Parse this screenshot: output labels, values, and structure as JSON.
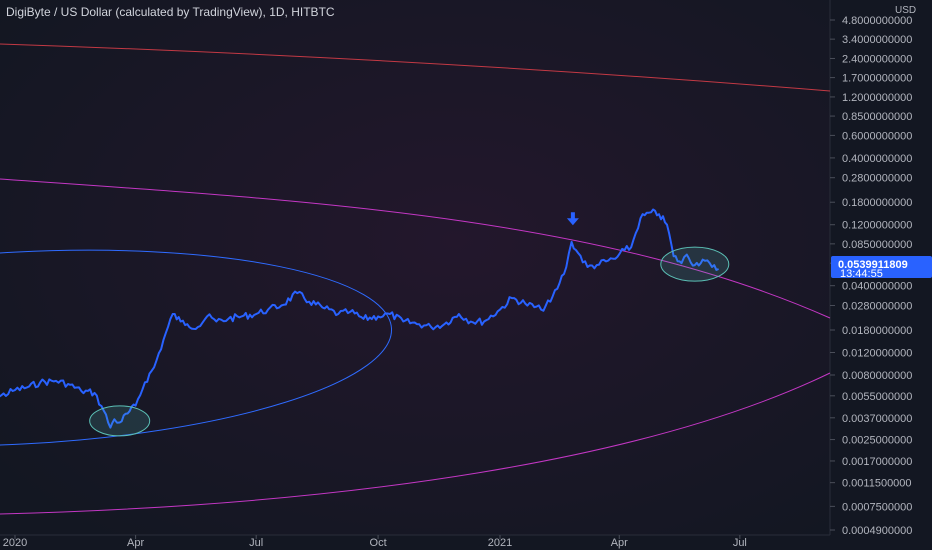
{
  "header": {
    "title": "DigiByte / US Dollar (calculated by TradingView), 1D, HITBTC"
  },
  "colors": {
    "background": "#131722",
    "price_line": "#2962ff",
    "ellipse_red": "#e0404a",
    "ellipse_magenta": "#d63bd6",
    "ellipse_blue": "#2f6bff",
    "circle_teal": "#5bbfb5",
    "price_tag": "#2962ff",
    "axis_text": "#b2b5be"
  },
  "chart_data": {
    "type": "line",
    "title": "DigiByte / US Dollar (calculated by TradingView), 1D, HITBTC",
    "unit_label": "USD",
    "y_scale": "log",
    "ylim": [
      0.00045,
      5.0
    ],
    "y_tick_labels": [
      "4.8000000000",
      "3.4000000000",
      "2.4000000000",
      "1.7000000000",
      "1.2000000000",
      "0.8500000000",
      "0.6000000000",
      "0.4000000000",
      "0.2800000000",
      "0.1800000000",
      "0.1200000000",
      "0.0850000000",
      "0.0600000000",
      "0.0400000000",
      "0.0280000000",
      "0.0180000000",
      "0.0120000000",
      "0.0080000000",
      "0.0055000000",
      "0.0037000000",
      "0.0025000000",
      "0.0017000000",
      "0.0011500000",
      "0.0007500000",
      "0.0004900000"
    ],
    "y_tick_values": [
      4.8,
      3.4,
      2.4,
      1.7,
      1.2,
      0.85,
      0.6,
      0.4,
      0.28,
      0.18,
      0.12,
      0.085,
      0.06,
      0.04,
      0.028,
      0.018,
      0.012,
      0.008,
      0.0055,
      0.0037,
      0.0025,
      0.0017,
      0.00115,
      0.00075,
      0.00049
    ],
    "x_tick_labels": [
      "2020",
      "Apr",
      "Jul",
      "Oct",
      "2021",
      "Apr",
      "Jul"
    ],
    "x_tick_dates": [
      "2020-01-01",
      "2020-04-01",
      "2020-07-01",
      "2020-10-01",
      "2021-01-01",
      "2021-04-01",
      "2021-07-01"
    ],
    "last_price_label": "0.0539911809",
    "countdown_label": "13:44:55",
    "series": [
      {
        "dates": [
          "2019-12-01",
          "2019-12-10",
          "2019-12-20",
          "2020-01-01",
          "2020-01-10",
          "2020-01-20",
          "2020-02-01",
          "2020-02-10",
          "2020-02-20",
          "2020-03-01",
          "2020-03-08",
          "2020-03-13",
          "2020-03-16",
          "2020-03-20",
          "2020-03-26",
          "2020-04-01",
          "2020-04-08",
          "2020-04-15",
          "2020-04-22",
          "2020-04-29",
          "2020-05-05",
          "2020-05-10",
          "2020-05-18",
          "2020-05-25",
          "2020-06-01",
          "2020-06-10",
          "2020-06-20",
          "2020-07-01",
          "2020-07-10",
          "2020-07-20",
          "2020-08-01",
          "2020-08-10",
          "2020-08-20",
          "2020-09-01",
          "2020-09-10",
          "2020-09-20",
          "2020-10-01",
          "2020-10-10",
          "2020-10-20",
          "2020-11-01",
          "2020-11-10",
          "2020-11-20",
          "2020-12-01",
          "2020-12-10",
          "2020-12-20",
          "2021-01-01",
          "2021-01-10",
          "2021-01-20",
          "2021-02-01",
          "2021-02-08",
          "2021-02-15",
          "2021-02-20",
          "2021-02-24",
          "2021-03-01",
          "2021-03-08",
          "2021-03-15",
          "2021-03-22",
          "2021-03-29",
          "2021-04-05",
          "2021-04-10",
          "2021-04-17",
          "2021-04-25",
          "2021-05-01",
          "2021-05-07",
          "2021-05-12",
          "2021-05-18",
          "2021-05-22",
          "2021-05-28",
          "2021-06-03",
          "2021-06-10",
          "2021-06-15"
        ],
        "values": [
          0.0052,
          0.0055,
          0.0054,
          0.0061,
          0.0064,
          0.007,
          0.0072,
          0.0068,
          0.006,
          0.0058,
          0.0042,
          0.0031,
          0.0036,
          0.0034,
          0.004,
          0.0046,
          0.007,
          0.0092,
          0.015,
          0.024,
          0.021,
          0.02,
          0.019,
          0.023,
          0.021,
          0.022,
          0.023,
          0.024,
          0.026,
          0.028,
          0.035,
          0.03,
          0.027,
          0.024,
          0.025,
          0.022,
          0.023,
          0.024,
          0.021,
          0.02,
          0.019,
          0.02,
          0.024,
          0.021,
          0.021,
          0.026,
          0.032,
          0.029,
          0.026,
          0.03,
          0.042,
          0.056,
          0.088,
          0.072,
          0.056,
          0.058,
          0.062,
          0.065,
          0.076,
          0.08,
          0.135,
          0.15,
          0.145,
          0.12,
          0.068,
          0.06,
          0.07,
          0.058,
          0.064,
          0.056,
          0.054
        ]
      }
    ],
    "annotations": {
      "down_arrow": {
        "date": "2021-02-25",
        "value": 0.13
      },
      "circle_lower": {
        "date": "2020-03-20",
        "value": 0.0035
      },
      "circle_upper": {
        "date": "2021-05-28",
        "value": 0.059
      }
    }
  }
}
